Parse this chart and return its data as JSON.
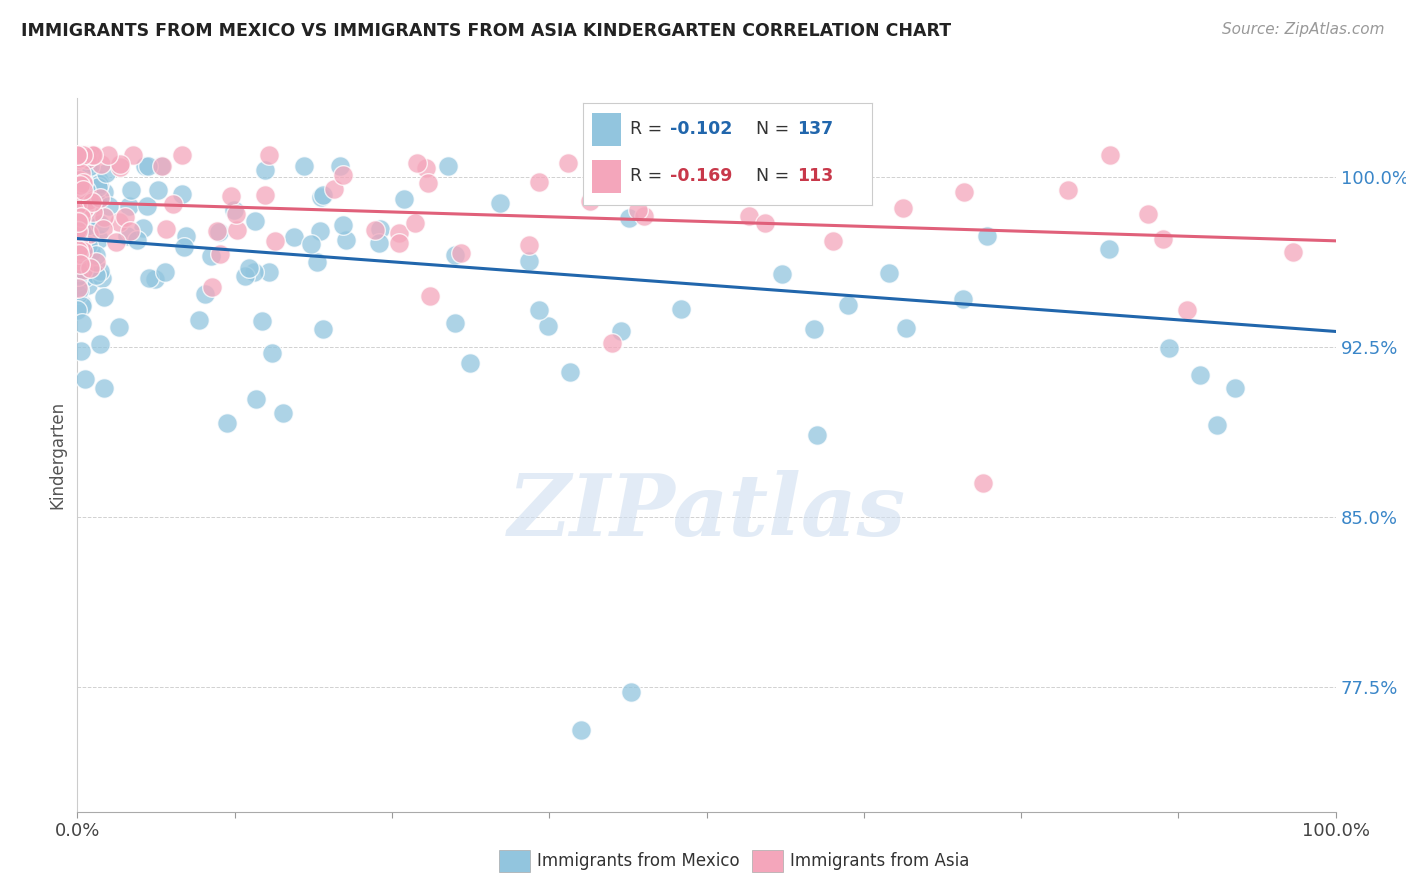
{
  "title": "IMMIGRANTS FROM MEXICO VS IMMIGRANTS FROM ASIA KINDERGARTEN CORRELATION CHART",
  "source": "Source: ZipAtlas.com",
  "ylabel": "Kindergarten",
  "ytick_labels": [
    "100.0%",
    "92.5%",
    "85.0%",
    "77.5%"
  ],
  "ytick_values": [
    1.0,
    0.925,
    0.85,
    0.775
  ],
  "legend_blue_label": "Immigrants from Mexico",
  "legend_pink_label": "Immigrants from Asia",
  "watermark": "ZIPatlas",
  "blue_color": "#92c5de",
  "pink_color": "#f4a6bb",
  "blue_line_color": "#2166ac",
  "pink_line_color": "#d6604d",
  "tick_color": "#3a86c8",
  "background_color": "#ffffff",
  "blue_scatter_seed": 42,
  "pink_scatter_seed": 99,
  "xlim": [
    0.0,
    1.0
  ],
  "ylim": [
    0.72,
    1.035
  ],
  "blue_trend_start": 0.973,
  "blue_trend_end": 0.932,
  "pink_trend_start": 0.989,
  "pink_trend_end": 0.972
}
